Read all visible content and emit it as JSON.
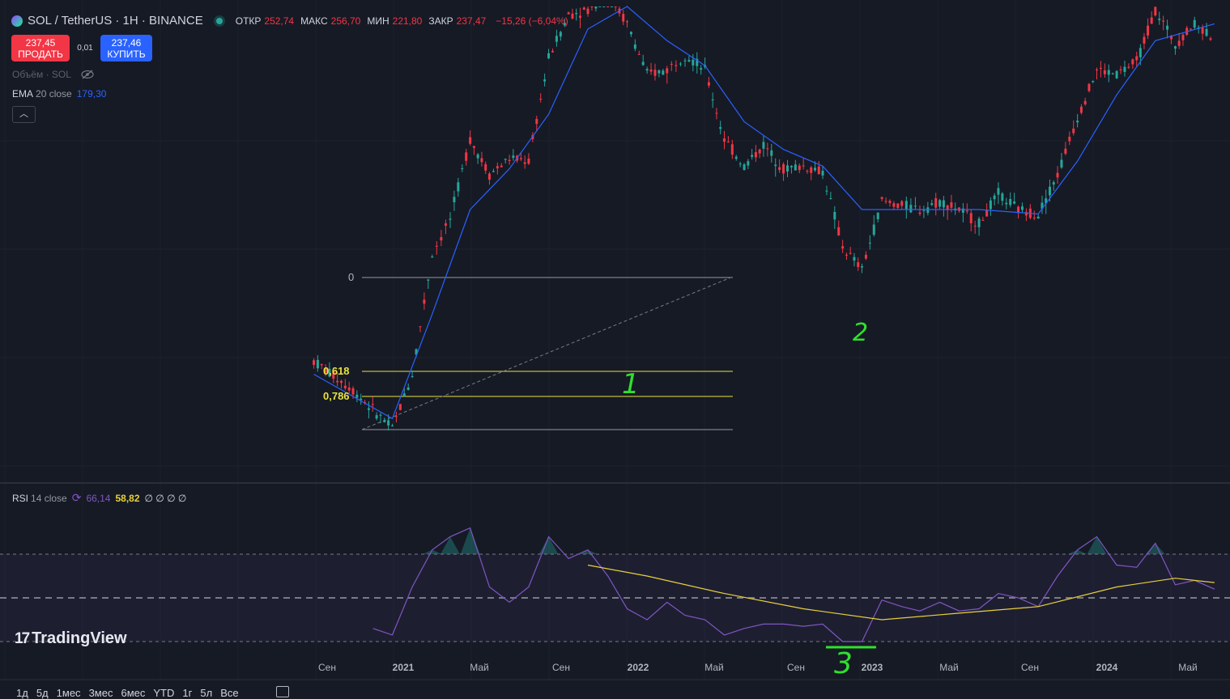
{
  "header": {
    "symbol": "SOL / TetherUS · 1H · BINANCE",
    "ohlc": [
      {
        "k": "ОТКР",
        "v": "252,74"
      },
      {
        "k": "МАКС",
        "v": "256,70"
      },
      {
        "k": "МИН",
        "v": "221,80"
      },
      {
        "k": "ЗАКР",
        "v": "237,47"
      },
      {
        "k": "",
        "v": "−15,26 (−6,04%)"
      }
    ]
  },
  "trade": {
    "sell_price": "237,45",
    "sell_label": "ПРОДАТЬ",
    "spread": "0,01",
    "buy_price": "237,46",
    "buy_label": "КУПИТЬ"
  },
  "volume_legend": "Объём · SOL",
  "ema_legend": {
    "name": "EMA",
    "params": "20 close",
    "value": "179,30"
  },
  "rsi_legend": {
    "name": "RSI",
    "params": "14 close",
    "value1": "66,14",
    "value2": "58,82",
    "empties": "∅ ∅ ∅ ∅"
  },
  "colors": {
    "up": "#26a69a",
    "down": "#f23645",
    "ema": "#2962ff",
    "rsi": "#7e57c2",
    "rsi_ma": "#e8d23a",
    "fib": "#e8e23c",
    "annotation": "#2fe02f"
  },
  "annotations": {
    "one": "1",
    "two": "2",
    "three": "3"
  },
  "logo": "TradingView",
  "timeframes": [
    "1д",
    "5д",
    "1мес",
    "3мес",
    "6мес",
    "YTD",
    "1г",
    "5л",
    "Все"
  ],
  "chart_data": {
    "type": "candlestick",
    "x_ticks": [
      "Сен",
      "2021",
      "Май",
      "Сен",
      "2022",
      "Май",
      "Сен",
      "2023",
      "Май",
      "Сен",
      "2024",
      "Май"
    ],
    "fib_levels": [
      {
        "label": "0",
        "value": 0
      },
      {
        "label": "0,618",
        "value": 0.618
      },
      {
        "label": "0,786",
        "value": 0.786
      }
    ],
    "rsi_bands": {
      "upper": 70,
      "middle": 50,
      "lower": 30
    },
    "price_series": [
      {
        "d": "2020-08",
        "p": 3.5
      },
      {
        "d": "2020-10",
        "p": 2.5
      },
      {
        "d": "2020-12",
        "p": 1.6
      },
      {
        "d": "2021-01",
        "p": 3
      },
      {
        "d": "2021-02",
        "p": 12
      },
      {
        "d": "2021-03",
        "p": 18
      },
      {
        "d": "2021-04",
        "p": 45
      },
      {
        "d": "2021-05",
        "p": 30
      },
      {
        "d": "2021-06",
        "p": 36
      },
      {
        "d": "2021-07",
        "p": 35
      },
      {
        "d": "2021-08",
        "p": 115
      },
      {
        "d": "2021-09",
        "p": 190
      },
      {
        "d": "2021-10",
        "p": 200
      },
      {
        "d": "2021-11",
        "p": 245
      },
      {
        "d": "2021-12",
        "p": 170
      },
      {
        "d": "2022-01",
        "p": 95
      },
      {
        "d": "2022-02",
        "p": 100
      },
      {
        "d": "2022-03",
        "p": 120
      },
      {
        "d": "2022-04",
        "p": 100
      },
      {
        "d": "2022-05",
        "p": 45
      },
      {
        "d": "2022-06",
        "p": 33
      },
      {
        "d": "2022-07",
        "p": 42
      },
      {
        "d": "2022-08",
        "p": 32
      },
      {
        "d": "2022-09",
        "p": 33
      },
      {
        "d": "2022-10",
        "p": 31
      },
      {
        "d": "2022-11",
        "p": 13
      },
      {
        "d": "2022-12",
        "p": 10
      },
      {
        "d": "2023-01",
        "p": 22
      },
      {
        "d": "2023-02",
        "p": 21
      },
      {
        "d": "2023-03",
        "p": 20
      },
      {
        "d": "2023-04",
        "p": 22
      },
      {
        "d": "2023-05",
        "p": 20
      },
      {
        "d": "2023-06",
        "p": 17
      },
      {
        "d": "2023-07",
        "p": 24
      },
      {
        "d": "2023-08",
        "p": 20
      },
      {
        "d": "2023-09",
        "p": 19
      },
      {
        "d": "2023-10",
        "p": 30
      },
      {
        "d": "2023-11",
        "p": 58
      },
      {
        "d": "2023-12",
        "p": 100
      },
      {
        "d": "2024-01",
        "p": 95
      },
      {
        "d": "2024-02",
        "p": 110
      },
      {
        "d": "2024-03",
        "p": 200
      },
      {
        "d": "2024-04",
        "p": 135
      },
      {
        "d": "2024-05",
        "p": 170
      },
      {
        "d": "2024-06",
        "p": 145
      }
    ],
    "ema_series": [
      {
        "d": "2020-08",
        "p": 3
      },
      {
        "d": "2020-12",
        "p": 1.8
      },
      {
        "d": "2021-02",
        "p": 6
      },
      {
        "d": "2021-04",
        "p": 20
      },
      {
        "d": "2021-06",
        "p": 32
      },
      {
        "d": "2021-08",
        "p": 60
      },
      {
        "d": "2021-10",
        "p": 160
      },
      {
        "d": "2021-12",
        "p": 215
      },
      {
        "d": "2022-02",
        "p": 140
      },
      {
        "d": "2022-04",
        "p": 105
      },
      {
        "d": "2022-06",
        "p": 55
      },
      {
        "d": "2022-08",
        "p": 40
      },
      {
        "d": "2022-10",
        "p": 33
      },
      {
        "d": "2022-12",
        "p": 20
      },
      {
        "d": "2023-02",
        "p": 20
      },
      {
        "d": "2023-06",
        "p": 20
      },
      {
        "d": "2023-09",
        "p": 19
      },
      {
        "d": "2023-11",
        "p": 35
      },
      {
        "d": "2024-01",
        "p": 75
      },
      {
        "d": "2024-03",
        "p": 140
      },
      {
        "d": "2024-06",
        "p": 170
      }
    ],
    "rsi_series": [
      {
        "d": "2020-11",
        "v": 36
      },
      {
        "d": "2020-12",
        "v": 33
      },
      {
        "d": "2021-01",
        "v": 55
      },
      {
        "d": "2021-02",
        "v": 72
      },
      {
        "d": "2021-03",
        "v": 78
      },
      {
        "d": "2021-04",
        "v": 82
      },
      {
        "d": "2021-05",
        "v": 55
      },
      {
        "d": "2021-06",
        "v": 48
      },
      {
        "d": "2021-07",
        "v": 55
      },
      {
        "d": "2021-08",
        "v": 78
      },
      {
        "d": "2021-09",
        "v": 68
      },
      {
        "d": "2021-10",
        "v": 72
      },
      {
        "d": "2021-11",
        "v": 60
      },
      {
        "d": "2021-12",
        "v": 45
      },
      {
        "d": "2022-01",
        "v": 40
      },
      {
        "d": "2022-02",
        "v": 48
      },
      {
        "d": "2022-03",
        "v": 42
      },
      {
        "d": "2022-04",
        "v": 40
      },
      {
        "d": "2022-05",
        "v": 33
      },
      {
        "d": "2022-06",
        "v": 36
      },
      {
        "d": "2022-07",
        "v": 38
      },
      {
        "d": "2022-08",
        "v": 38
      },
      {
        "d": "2022-09",
        "v": 37
      },
      {
        "d": "2022-10",
        "v": 38
      },
      {
        "d": "2022-11",
        "v": 30
      },
      {
        "d": "2022-12",
        "v": 30
      },
      {
        "d": "2023-01",
        "v": 49
      },
      {
        "d": "2023-02",
        "v": 46
      },
      {
        "d": "2023-03",
        "v": 44
      },
      {
        "d": "2023-04",
        "v": 48
      },
      {
        "d": "2023-05",
        "v": 44
      },
      {
        "d": "2023-06",
        "v": 45
      },
      {
        "d": "2023-07",
        "v": 52
      },
      {
        "d": "2023-08",
        "v": 50
      },
      {
        "d": "2023-09",
        "v": 46
      },
      {
        "d": "2023-10",
        "v": 60
      },
      {
        "d": "2023-11",
        "v": 72
      },
      {
        "d": "2023-12",
        "v": 78
      },
      {
        "d": "2024-01",
        "v": 65
      },
      {
        "d": "2024-02",
        "v": 64
      },
      {
        "d": "2024-03",
        "v": 75
      },
      {
        "d": "2024-04",
        "v": 56
      },
      {
        "d": "2024-05",
        "v": 58
      },
      {
        "d": "2024-06",
        "v": 54
      }
    ],
    "rsi_ma_series": [
      {
        "d": "2021-10",
        "v": 65
      },
      {
        "d": "2022-01",
        "v": 60
      },
      {
        "d": "2022-05",
        "v": 52
      },
      {
        "d": "2022-09",
        "v": 45
      },
      {
        "d": "2023-01",
        "v": 40
      },
      {
        "d": "2023-05",
        "v": 43
      },
      {
        "d": "2023-09",
        "v": 46
      },
      {
        "d": "2024-01",
        "v": 55
      },
      {
        "d": "2024-04",
        "v": 59
      },
      {
        "d": "2024-06",
        "v": 57
      }
    ]
  }
}
